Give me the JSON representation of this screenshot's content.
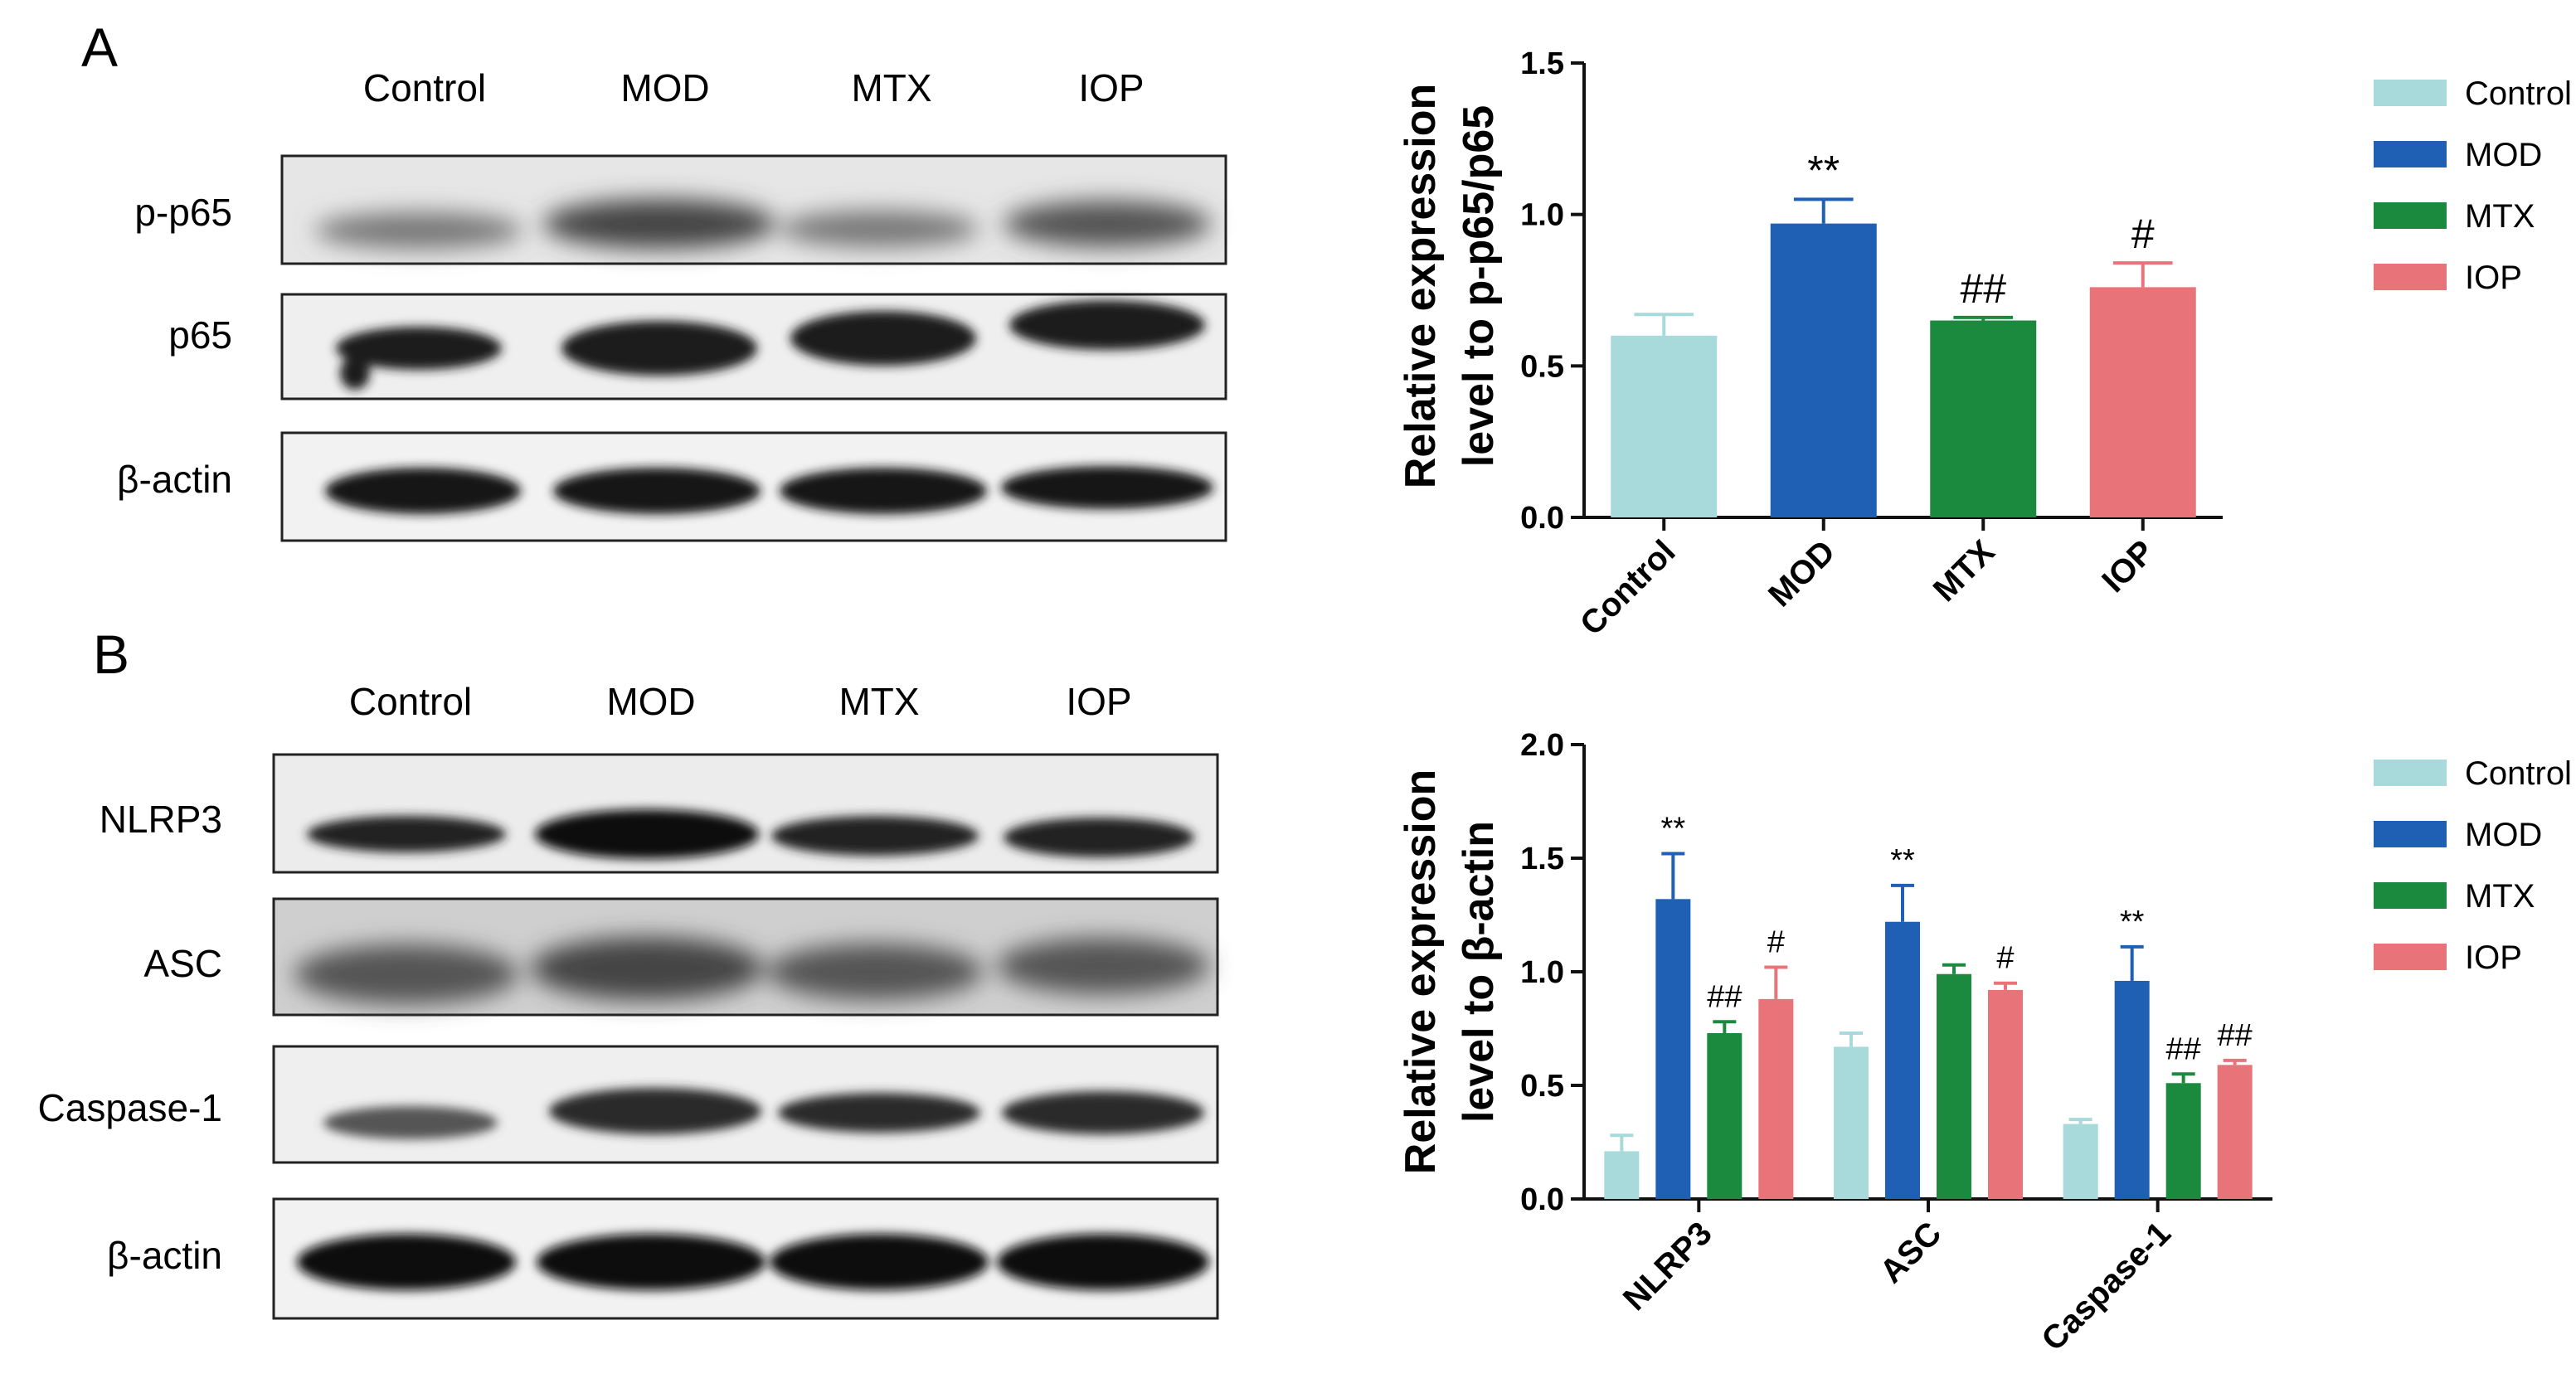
{
  "panels": {
    "a": {
      "letter": "A",
      "lanes": [
        "Control",
        "MOD",
        "MTX",
        "IOP"
      ],
      "rows": [
        "p-p65",
        "p65",
        "β-actin"
      ]
    },
    "b": {
      "letter": "B",
      "lanes": [
        "Control",
        "MOD",
        "MTX",
        "IOP"
      ],
      "rows": [
        "NLRP3",
        "ASC",
        "Caspase-1",
        "β-actin"
      ]
    }
  },
  "chart_data": [
    {
      "type": "bar",
      "ylabel": [
        "Relative expression",
        "level to p-p65/p65"
      ],
      "xlabel": "",
      "ylim": [
        0,
        1.5
      ],
      "yticks": [
        "0.0",
        "0.5",
        "1.0",
        "1.5"
      ],
      "categories": [
        "Control",
        "MOD",
        "MTX",
        "IOP"
      ],
      "values": [
        0.6,
        0.97,
        0.65,
        0.76
      ],
      "errors": [
        0.07,
        0.08,
        0.01,
        0.08
      ],
      "annotations": [
        "",
        "**",
        "##",
        "#"
      ],
      "legend": [
        "Control",
        "MOD",
        "MTX",
        "IOP"
      ],
      "legend_position": "right",
      "colors": [
        "#a8dadc",
        "#1f5fb4",
        "#1b8a3e",
        "#e8747a"
      ]
    },
    {
      "type": "bar",
      "ylabel": [
        "Relative expression",
        "level to β-actin"
      ],
      "xlabel": "",
      "ylim": [
        0,
        2.0
      ],
      "yticks": [
        "0.0",
        "0.5",
        "1.0",
        "1.5",
        "2.0"
      ],
      "categories": [
        "NLRP3",
        "ASC",
        "Caspase-1"
      ],
      "series": [
        {
          "name": "Control",
          "values": [
            0.21,
            0.67,
            0.33
          ],
          "errors": [
            0.07,
            0.06,
            0.02
          ],
          "annotations": [
            "",
            "",
            ""
          ]
        },
        {
          "name": "MOD",
          "values": [
            1.32,
            1.22,
            0.96
          ],
          "errors": [
            0.2,
            0.16,
            0.15
          ],
          "annotations": [
            "**",
            "**",
            "**"
          ]
        },
        {
          "name": "MTX",
          "values": [
            0.73,
            0.99,
            0.51
          ],
          "errors": [
            0.05,
            0.04,
            0.04
          ],
          "annotations": [
            "##",
            "",
            "##"
          ]
        },
        {
          "name": "IOP",
          "values": [
            0.88,
            0.92,
            0.59
          ],
          "errors": [
            0.14,
            0.03,
            0.02
          ],
          "annotations": [
            "#",
            "#",
            "##"
          ]
        }
      ],
      "legend_position": "right",
      "colors": [
        "#a8dadc",
        "#1f5fb4",
        "#1b8a3e",
        "#e8747a"
      ]
    }
  ]
}
